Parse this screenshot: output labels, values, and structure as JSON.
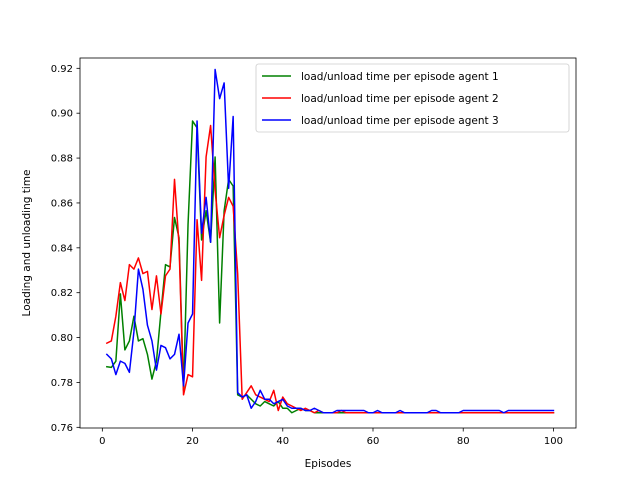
{
  "chart_data": {
    "type": "line",
    "title": "",
    "xlabel": "Episodes",
    "ylabel": "Loading and unloading time",
    "xlim": [
      -4.95,
      105.0
    ],
    "ylim": [
      0.7597,
      0.9246
    ],
    "xticks": [
      0,
      20,
      40,
      60,
      80,
      100
    ],
    "xtick_labels": [
      "0",
      "20",
      "40",
      "60",
      "80",
      "100"
    ],
    "yticks": [
      0.76,
      0.78,
      0.8,
      0.82,
      0.84,
      0.86,
      0.88,
      0.9,
      0.92
    ],
    "ytick_labels": [
      "0.76",
      "0.78",
      "0.80",
      "0.82",
      "0.84",
      "0.86",
      "0.88",
      "0.90",
      "0.92"
    ],
    "grid": false,
    "legend_position": "top-right",
    "x": [
      1,
      2,
      3,
      4,
      5,
      6,
      7,
      8,
      9,
      10,
      11,
      12,
      13,
      14,
      15,
      16,
      17,
      18,
      19,
      20,
      21,
      22,
      23,
      24,
      25,
      26,
      27,
      28,
      29,
      30,
      31,
      32,
      33,
      34,
      35,
      36,
      37,
      38,
      39,
      40,
      41,
      42,
      43,
      44,
      45,
      46,
      47,
      48,
      49,
      50,
      51,
      52,
      53,
      54,
      55,
      56,
      57,
      58,
      59,
      60,
      61,
      62,
      63,
      64,
      65,
      66,
      67,
      68,
      69,
      70,
      71,
      72,
      73,
      74,
      75,
      76,
      77,
      78,
      79,
      80,
      81,
      82,
      83,
      84,
      85,
      86,
      87,
      88,
      89,
      90,
      91,
      92,
      93,
      94,
      95,
      96,
      97,
      98,
      99,
      100
    ],
    "series": [
      {
        "name": "load/unload time per episode agent 1",
        "color": "#008000",
        "values": [
          0.787,
          0.7867,
          0.7895,
          0.8195,
          0.7945,
          0.7985,
          0.8095,
          0.7985,
          0.7995,
          0.7925,
          0.7815,
          0.7895,
          0.8115,
          0.8325,
          0.8315,
          0.8535,
          0.8445,
          0.7765,
          0.8505,
          0.8965,
          0.8935,
          0.8435,
          0.8565,
          0.8425,
          0.8805,
          0.8065,
          0.8565,
          0.8705,
          0.8675,
          0.7745,
          0.7735,
          0.7745,
          0.7725,
          0.7705,
          0.7695,
          0.7715,
          0.7705,
          0.7695,
          0.7715,
          0.7685,
          0.7685,
          0.7665,
          0.7675,
          0.7685,
          0.7675,
          0.7675,
          0.7665,
          0.7665,
          0.7665,
          0.7665,
          0.7665,
          0.7665,
          0.7665,
          0.7665,
          0.7665,
          0.7665,
          0.7665,
          0.7665,
          0.7665,
          0.7665,
          0.7665,
          0.7665,
          0.7665,
          0.7665,
          0.7665,
          0.7665,
          0.7665,
          0.7665,
          0.7665,
          0.7665,
          0.7665,
          0.7665,
          0.7665,
          0.7665,
          0.7665,
          0.7665,
          0.7665,
          0.7665,
          0.7665,
          0.7665,
          0.7665,
          0.7665,
          0.7665,
          0.7665,
          0.7665,
          0.7665,
          0.7665,
          0.7665,
          0.7665,
          0.7665,
          0.7665,
          0.7665,
          0.7665,
          0.7665,
          0.7665,
          0.7665,
          0.7665,
          0.7665,
          0.7665,
          0.7665
        ]
      },
      {
        "name": "load/unload time per episode agent 2",
        "color": "#ff0000",
        "values": [
          0.7975,
          0.7985,
          0.8095,
          0.8245,
          0.8165,
          0.8325,
          0.8305,
          0.8355,
          0.8285,
          0.8295,
          0.8125,
          0.8275,
          0.8105,
          0.8275,
          0.8305,
          0.8705,
          0.8415,
          0.7745,
          0.7835,
          0.7825,
          0.8525,
          0.8255,
          0.8805,
          0.8945,
          0.8655,
          0.8445,
          0.8545,
          0.8625,
          0.8585,
          0.8285,
          0.7725,
          0.7755,
          0.7785,
          0.7745,
          0.7735,
          0.7725,
          0.7715,
          0.7765,
          0.7675,
          0.7735,
          0.7705,
          0.7695,
          0.7685,
          0.7675,
          0.7685,
          0.7675,
          0.7665,
          0.7675,
          0.7665,
          0.7665,
          0.7665,
          0.7665,
          0.7675,
          0.7665,
          0.7665,
          0.7665,
          0.7665,
          0.7665,
          0.7665,
          0.7665,
          0.7665,
          0.7665,
          0.7665,
          0.7665,
          0.7665,
          0.7665,
          0.7665,
          0.7665,
          0.7665,
          0.7665,
          0.7665,
          0.7665,
          0.7665,
          0.7665,
          0.7665,
          0.7665,
          0.7665,
          0.7665,
          0.7665,
          0.7665,
          0.7665,
          0.7665,
          0.7665,
          0.7665,
          0.7665,
          0.7665,
          0.7665,
          0.7665,
          0.7665,
          0.7665,
          0.7665,
          0.7665,
          0.7665,
          0.7665,
          0.7665,
          0.7665,
          0.7665,
          0.7665,
          0.7665,
          0.7665
        ]
      },
      {
        "name": "load/unload time per episode agent 3",
        "color": "#0000ff",
        "values": [
          0.7925,
          0.7905,
          0.7835,
          0.7895,
          0.7885,
          0.7845,
          0.8025,
          0.8305,
          0.8215,
          0.8055,
          0.7985,
          0.7855,
          0.7965,
          0.7955,
          0.7905,
          0.7925,
          0.8015,
          0.7785,
          0.8065,
          0.8105,
          0.8965,
          0.8465,
          0.8625,
          0.8425,
          0.9195,
          0.9065,
          0.9135,
          0.8665,
          0.8985,
          0.7755,
          0.7735,
          0.7745,
          0.7685,
          0.7715,
          0.7765,
          0.7725,
          0.7725,
          0.7705,
          0.7715,
          0.7725,
          0.7695,
          0.7685,
          0.7685,
          0.7685,
          0.7675,
          0.7675,
          0.7685,
          0.7675,
          0.7665,
          0.7665,
          0.7665,
          0.7675,
          0.7675,
          0.7675,
          0.7675,
          0.7675,
          0.7675,
          0.7675,
          0.7665,
          0.7665,
          0.7675,
          0.7665,
          0.7665,
          0.7665,
          0.7665,
          0.7675,
          0.7665,
          0.7665,
          0.7665,
          0.7665,
          0.7665,
          0.7665,
          0.7675,
          0.7675,
          0.7665,
          0.7665,
          0.7665,
          0.7665,
          0.7665,
          0.7675,
          0.7675,
          0.7675,
          0.7675,
          0.7675,
          0.7675,
          0.7675,
          0.7675,
          0.7675,
          0.7665,
          0.7675,
          0.7675,
          0.7675,
          0.7675,
          0.7675,
          0.7675,
          0.7675,
          0.7675,
          0.7675,
          0.7675,
          0.7675
        ]
      }
    ]
  }
}
